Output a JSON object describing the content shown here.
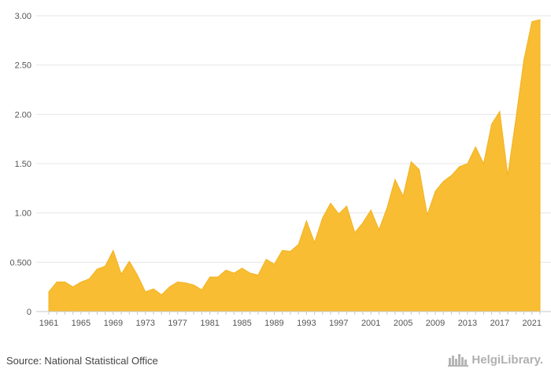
{
  "chart_data": {
    "type": "area",
    "title": "",
    "xlabel": "",
    "ylabel": "",
    "color": "#f9bd33",
    "grid": true,
    "ylim": [
      0,
      3.0
    ],
    "xlim": [
      1961,
      2022
    ],
    "y_ticks": [
      "0",
      "0.500",
      "1.00",
      "1.50",
      "2.00",
      "2.50",
      "3.00"
    ],
    "y_tick_values": [
      0,
      0.5,
      1.0,
      1.5,
      2.0,
      2.5,
      3.0
    ],
    "x_ticks": [
      "1961",
      "1965",
      "1969",
      "1973",
      "1977",
      "1981",
      "1985",
      "1989",
      "1993",
      "1997",
      "2001",
      "2005",
      "2009",
      "2013",
      "2017",
      "2021"
    ],
    "x": [
      1961,
      1962,
      1963,
      1964,
      1965,
      1966,
      1967,
      1968,
      1969,
      1970,
      1971,
      1972,
      1973,
      1974,
      1975,
      1976,
      1977,
      1978,
      1979,
      1980,
      1981,
      1982,
      1983,
      1984,
      1985,
      1986,
      1987,
      1988,
      1989,
      1990,
      1991,
      1992,
      1993,
      1994,
      1995,
      1996,
      1997,
      1998,
      1999,
      2000,
      2001,
      2002,
      2003,
      2004,
      2005,
      2006,
      2007,
      2008,
      2009,
      2010,
      2011,
      2012,
      2013,
      2014,
      2015,
      2016,
      2017,
      2018,
      2019,
      2020,
      2021,
      2022
    ],
    "values": [
      0.2,
      0.3,
      0.3,
      0.25,
      0.3,
      0.33,
      0.43,
      0.46,
      0.62,
      0.38,
      0.51,
      0.37,
      0.2,
      0.23,
      0.17,
      0.25,
      0.3,
      0.29,
      0.27,
      0.22,
      0.35,
      0.35,
      0.42,
      0.39,
      0.44,
      0.39,
      0.37,
      0.53,
      0.48,
      0.62,
      0.61,
      0.68,
      0.92,
      0.7,
      0.95,
      1.1,
      0.99,
      1.07,
      0.8,
      0.9,
      1.03,
      0.83,
      1.05,
      1.34,
      1.17,
      1.52,
      1.44,
      0.98,
      1.22,
      1.32,
      1.38,
      1.47,
      1.5,
      1.67,
      1.5,
      1.9,
      2.03,
      1.38,
      1.95,
      2.55,
      2.94,
      2.96
    ]
  },
  "footer": {
    "source": "Source: National Statistical Office",
    "brand": "HelgiLibrary.",
    "brand_icon": "library-logo-icon"
  }
}
